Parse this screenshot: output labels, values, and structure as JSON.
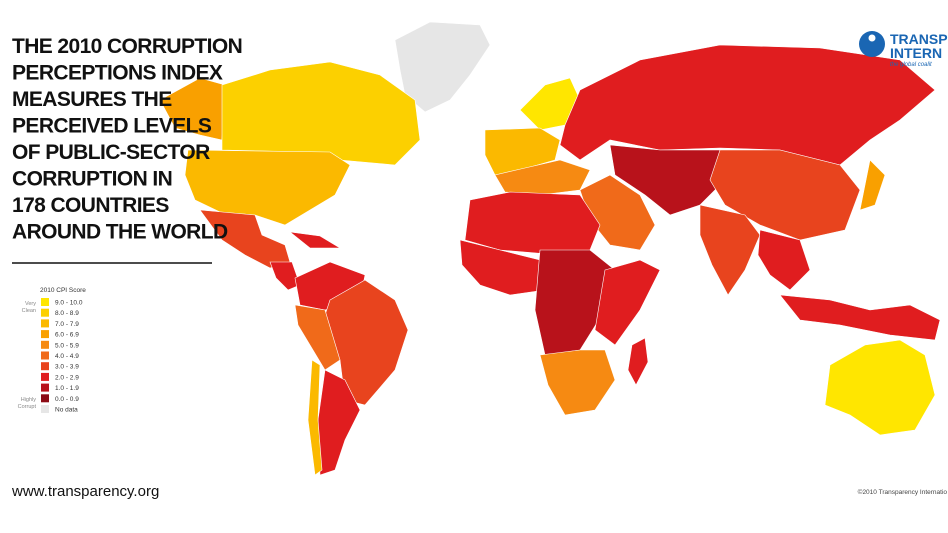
{
  "title_lines": [
    "THE 2010 CORRUPTION",
    "PERCEPTIONS INDEX",
    "MEASURES THE",
    "PERCEIVED LEVELS",
    "OF PUBLIC-SECTOR",
    "CORRUPTION IN",
    "178 COUNTRIES",
    "AROUND THE WORLD"
  ],
  "legend": {
    "title": "2010 CPI Score",
    "top_label": [
      "Very",
      "Clean"
    ],
    "bottom_label": [
      "Highly",
      "Corrupt"
    ],
    "items": [
      {
        "label": "9.0 - 10.0",
        "color": "#ffe600"
      },
      {
        "label": "8.0 - 8.9",
        "color": "#fcd000"
      },
      {
        "label": "7.0 - 7.9",
        "color": "#fbb900"
      },
      {
        "label": "6.0 - 6.9",
        "color": "#f9a000"
      },
      {
        "label": "5.0 - 5.9",
        "color": "#f68a12"
      },
      {
        "label": "4.0 - 4.9",
        "color": "#f06a1a"
      },
      {
        "label": "3.0 - 3.9",
        "color": "#e8441e"
      },
      {
        "label": "2.0 - 2.9",
        "color": "#e01d1f"
      },
      {
        "label": "1.0 - 1.9",
        "color": "#b8121b"
      },
      {
        "label": "0.0 - 0.9",
        "color": "#8c0a14"
      }
    ],
    "no_data": {
      "label": "No data",
      "color": "#e6e6e6"
    }
  },
  "url": "www.transparency.org",
  "copyright": "©2010 Transparency Internatio",
  "logo": {
    "line1": "TRANSP",
    "line2": "INTERN",
    "tagline": "the global coalit"
  }
}
